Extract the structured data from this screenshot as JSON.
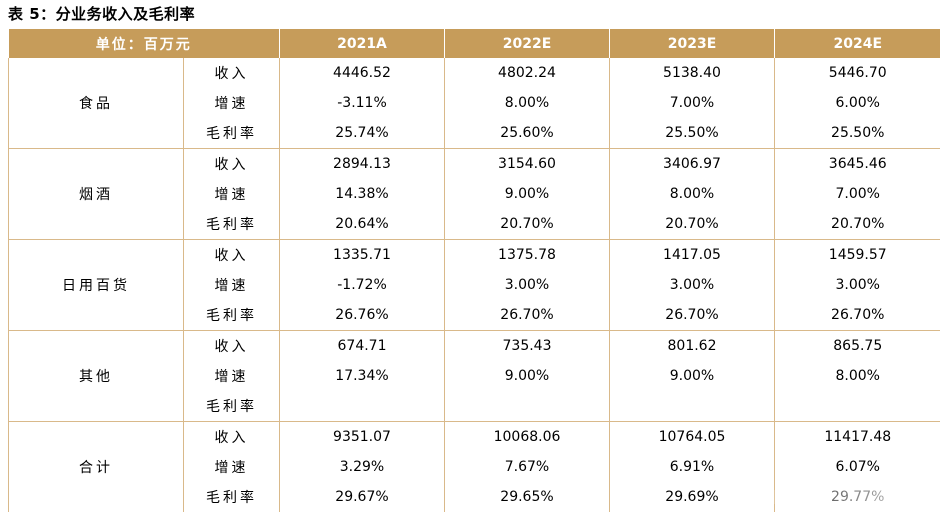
{
  "caption": "表 5：分业务收入及毛利率",
  "header": {
    "unit_label": "单位：百万元",
    "years": [
      "2021A",
      "2022E",
      "2023E",
      "2024E"
    ]
  },
  "segments": [
    {
      "name": "食品",
      "rows": [
        {
          "metric": "收入",
          "values": [
            "4446.52",
            "4802.24",
            "5138.40",
            "5446.70"
          ]
        },
        {
          "metric": "增速",
          "values": [
            "-3.11%",
            "8.00%",
            "7.00%",
            "6.00%"
          ]
        },
        {
          "metric": "毛利率",
          "values": [
            "25.74%",
            "25.60%",
            "25.50%",
            "25.50%"
          ]
        }
      ]
    },
    {
      "name": "烟酒",
      "rows": [
        {
          "metric": "收入",
          "values": [
            "2894.13",
            "3154.60",
            "3406.97",
            "3645.46"
          ]
        },
        {
          "metric": "增速",
          "values": [
            "14.38%",
            "9.00%",
            "8.00%",
            "7.00%"
          ]
        },
        {
          "metric": "毛利率",
          "values": [
            "20.64%",
            "20.70%",
            "20.70%",
            "20.70%"
          ]
        }
      ]
    },
    {
      "name": "日用百货",
      "rows": [
        {
          "metric": "收入",
          "values": [
            "1335.71",
            "1375.78",
            "1417.05",
            "1459.57"
          ]
        },
        {
          "metric": "增速",
          "values": [
            "-1.72%",
            "3.00%",
            "3.00%",
            "3.00%"
          ]
        },
        {
          "metric": "毛利率",
          "values": [
            "26.76%",
            "26.70%",
            "26.70%",
            "26.70%"
          ]
        }
      ]
    },
    {
      "name": "其他",
      "rows": [
        {
          "metric": "收入",
          "values": [
            "674.71",
            "735.43",
            "801.62",
            "865.75"
          ]
        },
        {
          "metric": "增速",
          "values": [
            "17.34%",
            "9.00%",
            "9.00%",
            "8.00%"
          ]
        },
        {
          "metric": "毛利率",
          "values": [
            "",
            "",
            "",
            ""
          ]
        }
      ]
    },
    {
      "name": "合计",
      "rows": [
        {
          "metric": "收入",
          "values": [
            "9351.07",
            "10068.06",
            "10764.05",
            "11417.48"
          ]
        },
        {
          "metric": "增速",
          "values": [
            "3.29%",
            "7.67%",
            "6.91%",
            "6.07%"
          ]
        },
        {
          "metric": "毛利率",
          "values": [
            "29.67%",
            "29.65%",
            "29.69%",
            "29.77%"
          ]
        }
      ]
    }
  ],
  "colors": {
    "header_bg": "#c69c5a",
    "header_text": "#ffffff",
    "border": "#d9b98a"
  }
}
